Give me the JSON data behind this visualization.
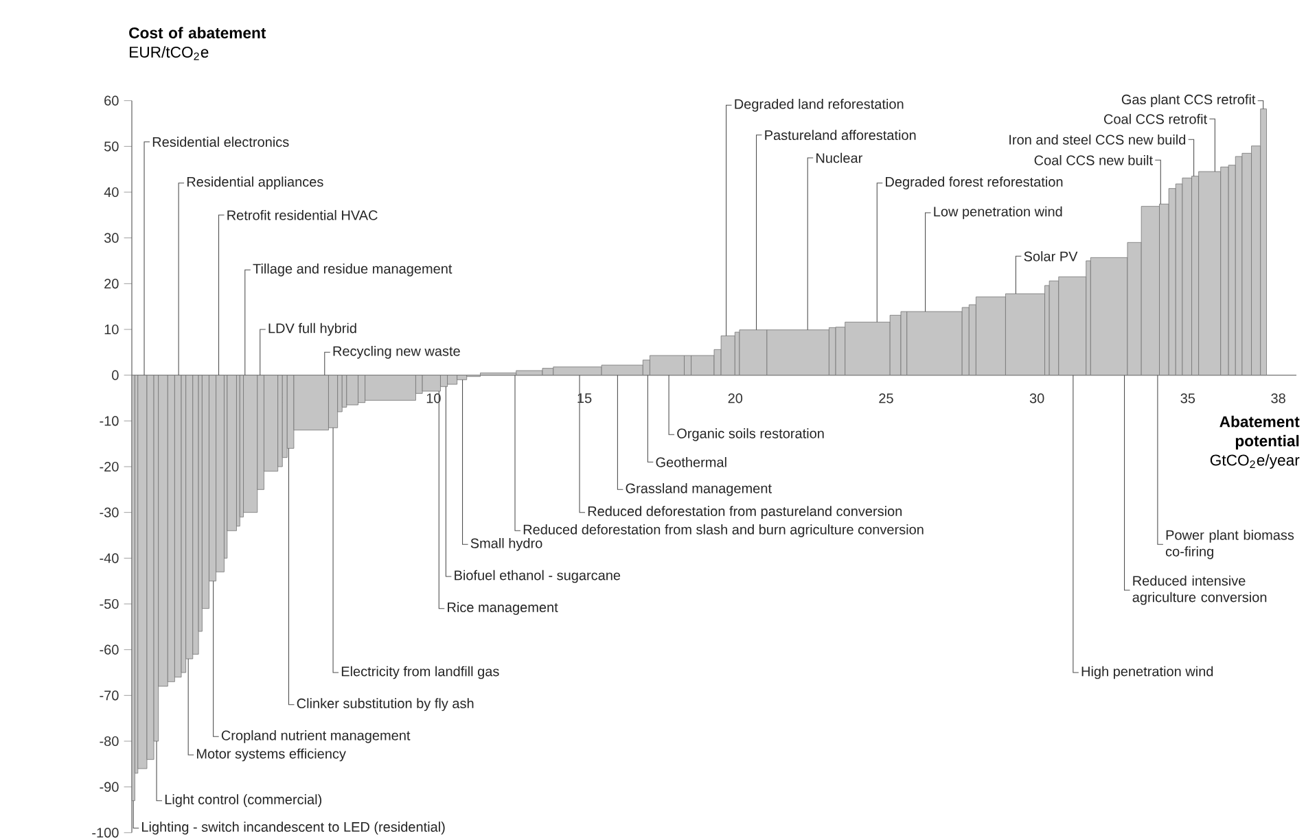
{
  "chart_data": {
    "type": "histogram",
    "ylabel": "**Cost of abatement** EUR/tCO$_{2}$e",
    "xlabel": "**Abatement potential** GtCO$_{2}$e/year",
    "bins": [
      0,
      0.1,
      0.2,
      0.5,
      0.73,
      0.88,
      1.19,
      1.42,
      1.64,
      1.79,
      2.02,
      2.21,
      2.33,
      2.56,
      2.79,
      3.06,
      3.16,
      3.47,
      3.58,
      3.7,
      4.16,
      4.38,
      4.84,
      4.99,
      5.15,
      5.37,
      6.52,
      6.82,
      6.97,
      7.12,
      7.5,
      7.73,
      9.41,
      9.63,
      10.23,
      10.46,
      10.78,
      11.1,
      11.55,
      12.74,
      13.61,
      13.97,
      15.57,
      16.94,
      17.17,
      18.31,
      18.54,
      19.3,
      19.53,
      19.99,
      20.14,
      21.05,
      23.11,
      23.33,
      23.64,
      25.13,
      25.49,
      25.69,
      27.52,
      27.75,
      27.98,
      28.96,
      30.26,
      30.41,
      30.72,
      31.63,
      31.78,
      33.0,
      33.46,
      34.06,
      34.37,
      34.6,
      34.82,
      35.13,
      35.36,
      36.09,
      36.35,
      36.58,
      36.8,
      37.11,
      37.41,
      37.61
    ],
    "values": [
      -93,
      -87,
      -86,
      -84,
      -80,
      -68,
      -67,
      -66,
      -65,
      -62,
      -61,
      -56,
      -51,
      -45,
      -43,
      -40,
      -34,
      -33,
      -31,
      -30,
      -25,
      -21,
      -20,
      -18,
      -16,
      -12,
      -11.5,
      -8,
      -7,
      -6.5,
      -6,
      -5.5,
      -4,
      -3.5,
      -2.5,
      -2,
      -1,
      -0.3,
      0.5,
      1,
      1.5,
      1.8,
      2.2,
      3.3,
      4.3,
      4.3,
      4.3,
      5.6,
      8.6,
      9.4,
      9.9,
      9.9,
      10.4,
      10.5,
      11.6,
      13.1,
      13.9,
      13.9,
      14.8,
      15.4,
      17.1,
      17.8,
      19.6,
      20.6,
      21.5,
      25,
      25.7,
      29,
      36.9,
      37.4,
      40.8,
      41.8,
      43.1,
      43.5,
      44.5,
      45.5,
      45.9,
      47.8,
      48.5,
      50.1,
      58.2
    ],
    "color": "#c4c4c4",
    "xlim": [
      0,
      38.6
    ],
    "ylim": [
      -100,
      60
    ],
    "xticks": [
      5,
      10,
      15,
      20,
      25,
      30,
      35,
      38
    ],
    "yticks": [
      -100,
      -90,
      -80,
      -70,
      -60,
      -50,
      -40,
      -30,
      -20,
      -10,
      0,
      10,
      20,
      30,
      40,
      50,
      60
    ],
    "annotations": [
      {
        "text": "Residential electronics",
        "x": 0.41,
        "y": 0
      },
      {
        "text": "Residential appliances",
        "x": 1.55,
        "y": 0
      },
      {
        "text": "Retrofit residential HVAC",
        "x": 2.88,
        "y": 0
      },
      {
        "text": "Tillage and residue management",
        "x": 3.75,
        "y": 0
      },
      {
        "text": "LDV full hybrid",
        "x": 4.25,
        "y": 0
      },
      {
        "text": "Recycling new waste",
        "x": 6.39,
        "y": 0
      },
      {
        "text": "Lighting - switch incandescent to LED (residential)",
        "x": 0.05,
        "y": -93
      },
      {
        "text": "Light control (commercial)",
        "x": 0.82,
        "y": -80
      },
      {
        "text": "Motor systems efficiency",
        "x": 1.87,
        "y": -62
      },
      {
        "text": "Cropland nutrient management",
        "x": 2.7,
        "y": -45
      },
      {
        "text": "Clinker substitution by fly ash",
        "x": 5.2,
        "y": -16
      },
      {
        "text": "Electricity from landfill gas",
        "x": 6.67,
        "y": -11.5
      },
      {
        "text": "Rice management",
        "x": 10.18,
        "y": -3.5
      },
      {
        "text": "Biofuel ethanol - sugarcane",
        "x": 10.41,
        "y": -2.5
      },
      {
        "text": "Small hydro",
        "x": 10.96,
        "y": -1
      },
      {
        "text": "Reduced deforestation from slash and burn agriculture conversion",
        "x": 12.7,
        "y": 0
      },
      {
        "text": "Reduced deforestation from pastureland conversion",
        "x": 14.84,
        "y": 0
      },
      {
        "text": "Grassland management",
        "x": 16.1,
        "y": 0
      },
      {
        "text": "Geothermal",
        "x": 17.1,
        "y": 0
      },
      {
        "text": "Organic soils restoration",
        "x": 17.8,
        "y": 0
      },
      {
        "text": "Degraded land reforestation",
        "x": 19.7,
        "y": 8.6
      },
      {
        "text": "Pastureland afforestation",
        "x": 20.7,
        "y": 9.9
      },
      {
        "text": "Nuclear",
        "x": 22.4,
        "y": 9.9
      },
      {
        "text": "Degraded forest reforestation",
        "x": 24.7,
        "y": 11.6
      },
      {
        "text": "Low penetration wind",
        "x": 26.3,
        "y": 13.9
      },
      {
        "text": "Solar PV",
        "x": 29.3,
        "y": 17.8
      },
      {
        "text": "Coal CCS new built",
        "x": 34.1,
        "y": 37.4
      },
      {
        "text": "Iron and steel CCS new build",
        "x": 35.2,
        "y": 43.5
      },
      {
        "text": "Coal CCS retrofit",
        "x": 35.9,
        "y": 44.5
      },
      {
        "text": "Gas plant CCS retrofit",
        "x": 37.5,
        "y": 58.2
      },
      {
        "text": "High penetration wind",
        "x": 31.2,
        "y": 0
      },
      {
        "text": "Reduced intensive agriculture conversion",
        "x": 32.9,
        "y": 0
      },
      {
        "text": "Power plant biomass co-firing",
        "x": 34.0,
        "y": 0
      }
    ]
  }
}
